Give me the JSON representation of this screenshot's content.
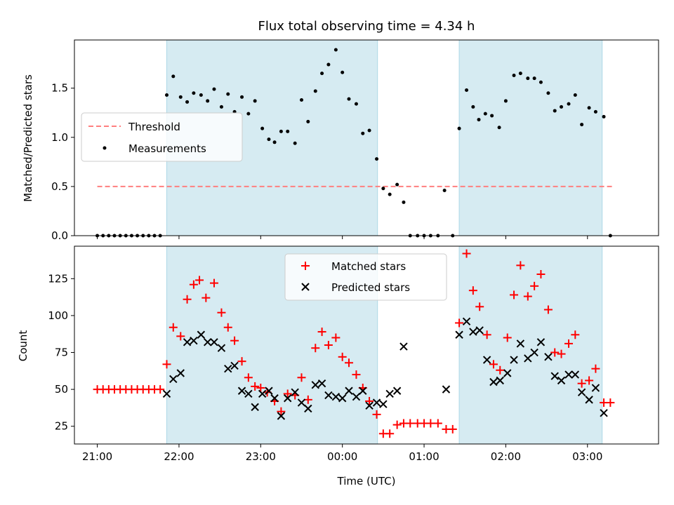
{
  "chart_data": [
    {
      "type": "scatter",
      "title": "Flux total observing time = 4.34 h",
      "xlabel": "",
      "ylabel": "Matched/Predicted stars",
      "xlim_hours": [
        20.72,
        27.87
      ],
      "ylim": [
        0.0,
        1.99
      ],
      "yticks": [
        "0.0",
        "0.5",
        "1.0",
        "1.5"
      ],
      "grid": false,
      "legend_position": "center-left",
      "shaded_intervals_hours": [
        [
          21.85,
          24.43
        ],
        [
          25.43,
          27.18
        ]
      ],
      "shade_color": "#add8e6",
      "threshold": {
        "name": "Threshold",
        "value": 0.5,
        "x_range_hours": [
          21.0,
          27.3
        ],
        "color": "#ff7f7f"
      },
      "series": [
        {
          "name": "Measurements",
          "color": "#000000",
          "points": [
            [
              21.0,
              0.0
            ],
            [
              21.07,
              0.0
            ],
            [
              21.14,
              0.0
            ],
            [
              21.21,
              0.0
            ],
            [
              21.28,
              0.0
            ],
            [
              21.35,
              0.0
            ],
            [
              21.42,
              0.0
            ],
            [
              21.49,
              0.0
            ],
            [
              21.56,
              0.0
            ],
            [
              21.63,
              0.0
            ],
            [
              21.7,
              0.0
            ],
            [
              21.77,
              0.0
            ],
            [
              21.85,
              1.43
            ],
            [
              21.93,
              1.62
            ],
            [
              22.02,
              1.41
            ],
            [
              22.1,
              1.36
            ],
            [
              22.18,
              1.45
            ],
            [
              22.27,
              1.43
            ],
            [
              22.35,
              1.37
            ],
            [
              22.43,
              1.49
            ],
            [
              22.52,
              1.31
            ],
            [
              22.6,
              1.44
            ],
            [
              22.68,
              1.26
            ],
            [
              22.77,
              1.41
            ],
            [
              22.85,
              1.24
            ],
            [
              22.93,
              1.37
            ],
            [
              23.02,
              1.09
            ],
            [
              23.1,
              0.98
            ],
            [
              23.17,
              0.95
            ],
            [
              23.25,
              1.06
            ],
            [
              23.33,
              1.06
            ],
            [
              23.42,
              0.94
            ],
            [
              23.5,
              1.38
            ],
            [
              23.58,
              1.16
            ],
            [
              23.67,
              1.47
            ],
            [
              23.75,
              1.65
            ],
            [
              23.83,
              1.74
            ],
            [
              23.92,
              1.89
            ],
            [
              24.0,
              1.66
            ],
            [
              24.08,
              1.39
            ],
            [
              24.17,
              1.34
            ],
            [
              24.25,
              1.04
            ],
            [
              24.33,
              1.07
            ],
            [
              24.42,
              0.78
            ],
            [
              24.5,
              0.48
            ],
            [
              24.58,
              0.42
            ],
            [
              24.67,
              0.52
            ],
            [
              24.75,
              0.34
            ],
            [
              24.83,
              0.0
            ],
            [
              24.92,
              0.0
            ],
            [
              25.0,
              0.0
            ],
            [
              25.08,
              0.0
            ],
            [
              25.17,
              0.0
            ],
            [
              25.25,
              0.46
            ],
            [
              25.35,
              0.0
            ],
            [
              25.43,
              1.09
            ],
            [
              25.52,
              1.48
            ],
            [
              25.6,
              1.31
            ],
            [
              25.67,
              1.18
            ],
            [
              25.75,
              1.24
            ],
            [
              25.83,
              1.22
            ],
            [
              25.92,
              1.1
            ],
            [
              26.0,
              1.37
            ],
            [
              26.1,
              1.63
            ],
            [
              26.18,
              1.65
            ],
            [
              26.27,
              1.6
            ],
            [
              26.35,
              1.6
            ],
            [
              26.43,
              1.56
            ],
            [
              26.52,
              1.45
            ],
            [
              26.6,
              1.27
            ],
            [
              26.68,
              1.31
            ],
            [
              26.77,
              1.34
            ],
            [
              26.85,
              1.43
            ],
            [
              26.93,
              1.13
            ],
            [
              27.02,
              1.3
            ],
            [
              27.1,
              1.26
            ],
            [
              27.2,
              1.21
            ],
            [
              27.28,
              0.0
            ]
          ]
        }
      ]
    },
    {
      "type": "scatter",
      "title": "",
      "xlabel": "Time (UTC)",
      "ylabel": "Count",
      "xlim_hours": [
        20.72,
        27.87
      ],
      "ylim": [
        13,
        147
      ],
      "yticks": [
        "25",
        "50",
        "75",
        "100",
        "125"
      ],
      "xticks": [
        {
          "hour": 21,
          "label": "21:00"
        },
        {
          "hour": 22,
          "label": "22:00"
        },
        {
          "hour": 23,
          "label": "23:00"
        },
        {
          "hour": 24,
          "label": "00:00"
        },
        {
          "hour": 25,
          "label": "01:00"
        },
        {
          "hour": 26,
          "label": "02:00"
        },
        {
          "hour": 27,
          "label": "03:00"
        }
      ],
      "grid": false,
      "legend_position": "top-center",
      "shaded_intervals_hours": [
        [
          21.85,
          24.43
        ],
        [
          25.43,
          27.18
        ]
      ],
      "shade_color": "#add8e6",
      "series": [
        {
          "name": "Matched stars",
          "color": "#ff0000",
          "marker": "plus",
          "points": [
            [
              21.0,
              50
            ],
            [
              21.07,
              50
            ],
            [
              21.14,
              50
            ],
            [
              21.21,
              50
            ],
            [
              21.28,
              50
            ],
            [
              21.35,
              50
            ],
            [
              21.42,
              50
            ],
            [
              21.49,
              50
            ],
            [
              21.56,
              50
            ],
            [
              21.63,
              50
            ],
            [
              21.7,
              50
            ],
            [
              21.77,
              50
            ],
            [
              21.85,
              67
            ],
            [
              21.93,
              92
            ],
            [
              22.02,
              86
            ],
            [
              22.1,
              111
            ],
            [
              22.18,
              121
            ],
            [
              22.25,
              124
            ],
            [
              22.33,
              112
            ],
            [
              22.43,
              122
            ],
            [
              22.52,
              102
            ],
            [
              22.6,
              92
            ],
            [
              22.68,
              83
            ],
            [
              22.77,
              69
            ],
            [
              22.85,
              58
            ],
            [
              22.93,
              52
            ],
            [
              23.0,
              51
            ],
            [
              23.08,
              48
            ],
            [
              23.17,
              42
            ],
            [
              23.25,
              35
            ],
            [
              23.33,
              47
            ],
            [
              23.42,
              46
            ],
            [
              23.5,
              58
            ],
            [
              23.58,
              43
            ],
            [
              23.67,
              78
            ],
            [
              23.75,
              89
            ],
            [
              23.83,
              80
            ],
            [
              23.92,
              85
            ],
            [
              24.0,
              72
            ],
            [
              24.08,
              68
            ],
            [
              24.17,
              60
            ],
            [
              24.25,
              51
            ],
            [
              24.33,
              42
            ],
            [
              24.42,
              33
            ],
            [
              24.5,
              20
            ],
            [
              24.58,
              20
            ],
            [
              24.67,
              26
            ],
            [
              24.75,
              27
            ],
            [
              24.83,
              27
            ],
            [
              24.92,
              27
            ],
            [
              25.0,
              27
            ],
            [
              25.08,
              27
            ],
            [
              25.17,
              27
            ],
            [
              25.27,
              23
            ],
            [
              25.35,
              23
            ],
            [
              25.43,
              95
            ],
            [
              25.52,
              142
            ],
            [
              25.6,
              117
            ],
            [
              25.68,
              106
            ],
            [
              25.77,
              87
            ],
            [
              25.85,
              67
            ],
            [
              25.93,
              63
            ],
            [
              26.02,
              85
            ],
            [
              26.1,
              114
            ],
            [
              26.18,
              134
            ],
            [
              26.27,
              113
            ],
            [
              26.35,
              120
            ],
            [
              26.43,
              128
            ],
            [
              26.52,
              104
            ],
            [
              26.6,
              75
            ],
            [
              26.68,
              74
            ],
            [
              26.77,
              81
            ],
            [
              26.85,
              87
            ],
            [
              26.93,
              54
            ],
            [
              27.02,
              56
            ],
            [
              27.1,
              64
            ],
            [
              27.2,
              41
            ],
            [
              27.28,
              41
            ]
          ]
        },
        {
          "name": "Predicted stars",
          "color": "#000000",
          "marker": "x",
          "points": [
            [
              21.85,
              47
            ],
            [
              21.93,
              57
            ],
            [
              22.02,
              61
            ],
            [
              22.1,
              82
            ],
            [
              22.18,
              83
            ],
            [
              22.27,
              87
            ],
            [
              22.35,
              82
            ],
            [
              22.43,
              82
            ],
            [
              22.52,
              78
            ],
            [
              22.6,
              64
            ],
            [
              22.68,
              66
            ],
            [
              22.77,
              49
            ],
            [
              22.85,
              47
            ],
            [
              22.93,
              38
            ],
            [
              23.02,
              47
            ],
            [
              23.1,
              49
            ],
            [
              23.17,
              44
            ],
            [
              23.25,
              32
            ],
            [
              23.33,
              44
            ],
            [
              23.42,
              48
            ],
            [
              23.5,
              41
            ],
            [
              23.58,
              37
            ],
            [
              23.67,
              53
            ],
            [
              23.75,
              54
            ],
            [
              23.83,
              46
            ],
            [
              23.92,
              45
            ],
            [
              24.0,
              44
            ],
            [
              24.08,
              49
            ],
            [
              24.17,
              45
            ],
            [
              24.25,
              49
            ],
            [
              24.33,
              39
            ],
            [
              24.42,
              41
            ],
            [
              24.5,
              40
            ],
            [
              24.58,
              47
            ],
            [
              24.67,
              49
            ],
            [
              24.75,
              79
            ],
            [
              25.27,
              50
            ],
            [
              25.43,
              87
            ],
            [
              25.52,
              96
            ],
            [
              25.6,
              89
            ],
            [
              25.68,
              90
            ],
            [
              25.77,
              70
            ],
            [
              25.85,
              55
            ],
            [
              25.93,
              56
            ],
            [
              26.02,
              61
            ],
            [
              26.1,
              70
            ],
            [
              26.18,
              81
            ],
            [
              26.27,
              71
            ],
            [
              26.35,
              75
            ],
            [
              26.43,
              82
            ],
            [
              26.52,
              72
            ],
            [
              26.6,
              59
            ],
            [
              26.68,
              56
            ],
            [
              26.77,
              60
            ],
            [
              26.85,
              60
            ],
            [
              26.93,
              48
            ],
            [
              27.02,
              43
            ],
            [
              27.1,
              51
            ],
            [
              27.2,
              34
            ]
          ]
        }
      ]
    }
  ]
}
